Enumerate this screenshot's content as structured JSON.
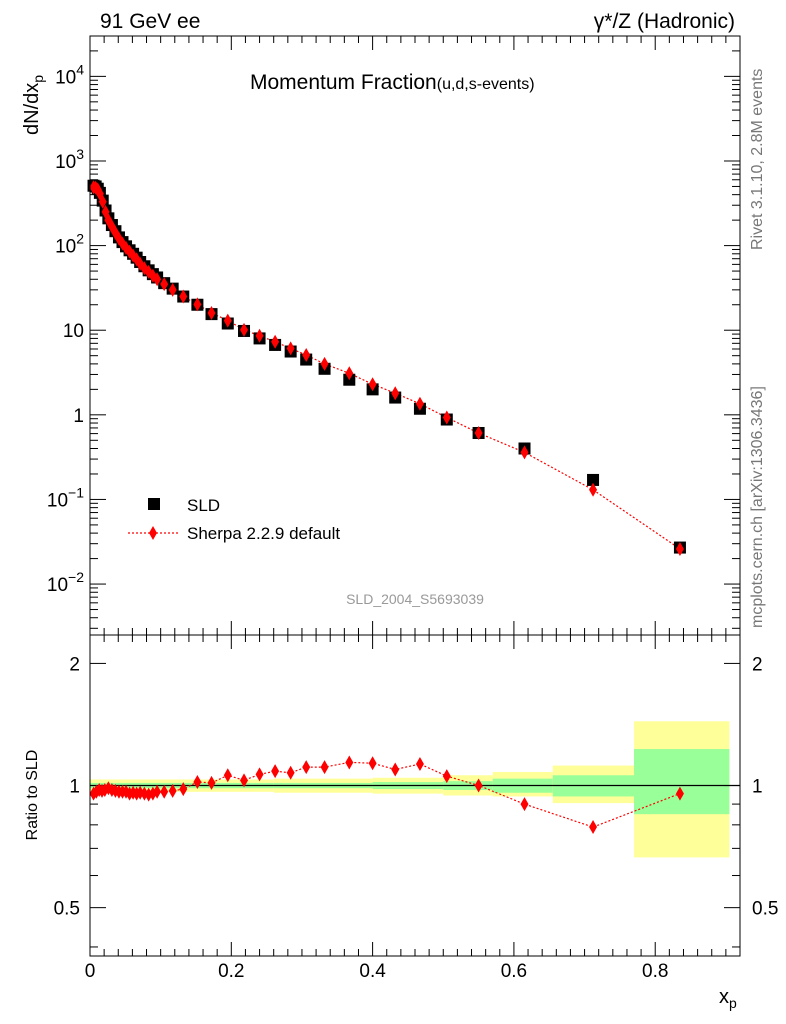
{
  "header": {
    "left": "91 GeV ee",
    "right": "γ*/Z (Hadronic)"
  },
  "side_text": {
    "top": "Rivet 3.1.10,  2.8M events",
    "bottom": "mcplots.cern.ch [arXiv:1306.3436]"
  },
  "colors": {
    "data": "#000000",
    "mc": "#ff0000",
    "band_inner": "#99ff99",
    "band_outer": "#ffff99"
  },
  "chart_data": [
    {
      "type": "scatter",
      "title": "Momentum Fraction",
      "subtitle": "(u,d,s-events)",
      "ylabel": "dN/dx",
      "ylabel_sub": "p",
      "yscale": "log",
      "xlim": [
        0,
        0.92
      ],
      "ylim": [
        0.0025,
        30000
      ],
      "y_ticks": [
        "10^-2",
        "10^-1",
        "1",
        "10",
        "10^2",
        "10^3",
        "10^4"
      ],
      "watermark": "SLD_2004_S5693039",
      "legend": {
        "placement": "lower-left",
        "data": "SLD",
        "mc": "Sherpa 2.2.9 default"
      },
      "x": [
        0.005,
        0.008,
        0.011,
        0.014,
        0.018,
        0.022,
        0.026,
        0.031,
        0.036,
        0.041,
        0.046,
        0.051,
        0.056,
        0.061,
        0.066,
        0.071,
        0.077,
        0.083,
        0.089,
        0.095,
        0.105,
        0.117,
        0.132,
        0.152,
        0.172,
        0.195,
        0.218,
        0.24,
        0.262,
        0.284,
        0.306,
        0.332,
        0.367,
        0.4,
        0.432,
        0.467,
        0.505,
        0.55,
        0.615,
        0.712,
        0.835
      ],
      "series": [
        {
          "name": "SLD",
          "values": [
            510,
            500,
            470,
            420,
            340,
            260,
            210,
            175,
            148,
            125,
            110,
            98,
            88,
            80,
            72,
            64,
            57,
            51,
            46,
            42,
            36,
            31,
            25,
            20,
            15.5,
            12.0,
            9.8,
            8.0,
            6.7,
            5.6,
            4.5,
            3.5,
            2.6,
            2.0,
            1.6,
            1.18,
            0.88,
            0.61,
            0.4,
            0.17,
            0.027
          ]
        },
        {
          "name": "Sherpa 2.2.9 default",
          "values": [
            490,
            485,
            460,
            410,
            330,
            250,
            200,
            168,
            142,
            121,
            106,
            94,
            85,
            76,
            69,
            61,
            54,
            49,
            44,
            40,
            35,
            30,
            25,
            20.2,
            16,
            13.0,
            10.1,
            8.6,
            7.3,
            6.1,
            5.1,
            4.0,
            3.1,
            2.3,
            1.8,
            1.35,
            0.93,
            0.61,
            0.36,
            0.13,
            0.026
          ]
        }
      ]
    },
    {
      "type": "scatter",
      "ylabel": "Ratio to SLD",
      "xlabel": "x",
      "xlabel_sub": "p",
      "xlim": [
        0,
        0.92
      ],
      "ylim": [
        0.38,
        2.35
      ],
      "y_ticks": [
        "0.5",
        "1",
        "2"
      ],
      "x_ticks": [
        "0",
        "0.2",
        "0.4",
        "0.6",
        "0.8"
      ],
      "bands": [
        {
          "x0": 0.0,
          "x1": 0.26,
          "inner": [
            0.985,
            1.015
          ],
          "outer": [
            0.965,
            1.035
          ]
        },
        {
          "x0": 0.26,
          "x1": 0.4,
          "inner": [
            0.985,
            1.015
          ],
          "outer": [
            0.96,
            1.04
          ]
        },
        {
          "x0": 0.4,
          "x1": 0.5,
          "inner": [
            0.98,
            1.02
          ],
          "outer": [
            0.955,
            1.045
          ]
        },
        {
          "x0": 0.5,
          "x1": 0.57,
          "inner": [
            0.975,
            1.025
          ],
          "outer": [
            0.945,
            1.06
          ]
        },
        {
          "x0": 0.57,
          "x1": 0.655,
          "inner": [
            0.96,
            1.04
          ],
          "outer": [
            0.94,
            1.08
          ]
        },
        {
          "x0": 0.655,
          "x1": 0.77,
          "inner": [
            0.94,
            1.06
          ],
          "outer": [
            0.905,
            1.12
          ]
        },
        {
          "x0": 0.77,
          "x1": 0.905,
          "inner": [
            0.85,
            1.23
          ],
          "outer": [
            0.665,
            1.44
          ]
        }
      ],
      "x": [
        0.005,
        0.009,
        0.013,
        0.017,
        0.021,
        0.026,
        0.031,
        0.036,
        0.041,
        0.046,
        0.051,
        0.056,
        0.061,
        0.066,
        0.071,
        0.077,
        0.083,
        0.089,
        0.095,
        0.105,
        0.117,
        0.132,
        0.152,
        0.172,
        0.195,
        0.218,
        0.24,
        0.262,
        0.284,
        0.306,
        0.332,
        0.367,
        0.4,
        0.432,
        0.467,
        0.505,
        0.55,
        0.615,
        0.712,
        0.835
      ],
      "values": [
        0.955,
        0.965,
        0.975,
        0.97,
        0.975,
        0.985,
        0.975,
        0.97,
        0.965,
        0.965,
        0.965,
        0.955,
        0.96,
        0.955,
        0.96,
        0.955,
        0.95,
        0.955,
        0.965,
        0.965,
        0.97,
        0.98,
        1.02,
        1.015,
        1.06,
        1.03,
        1.065,
        1.085,
        1.075,
        1.11,
        1.11,
        1.14,
        1.135,
        1.095,
        1.13,
        1.055,
        1.0,
        0.9,
        0.79,
        0.955
      ]
    }
  ]
}
